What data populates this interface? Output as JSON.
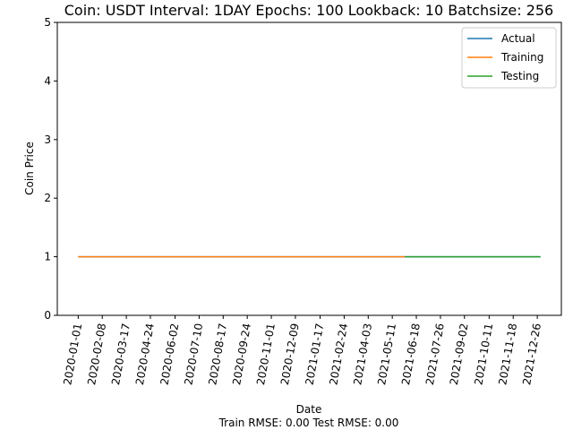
{
  "chart_data": {
    "type": "line",
    "title": "Coin: USDT Interval: 1DAY Epochs: 100 Lookback: 10 Batchsize: 256",
    "xlabel": "Date",
    "ylabel": "Coin Price",
    "footer": "Train RMSE: 0.00 Test RMSE: 0.00",
    "ylim": [
      0,
      5
    ],
    "y_ticks": [
      "0",
      "1",
      "2",
      "3",
      "4",
      "5"
    ],
    "x_range": [
      "2020-01-01",
      "2021-12-31"
    ],
    "x_ticks": [
      "2020-01-01",
      "2020-02-08",
      "2020-03-17",
      "2020-04-24",
      "2020-06-02",
      "2020-07-10",
      "2020-08-17",
      "2020-09-24",
      "2020-11-01",
      "2020-12-09",
      "2021-01-17",
      "2021-02-24",
      "2021-04-03",
      "2021-05-11",
      "2021-06-18",
      "2021-07-26",
      "2021-09-02",
      "2021-10-11",
      "2021-11-18",
      "2021-12-26"
    ],
    "grid": false,
    "legend_position": "top-right",
    "series": [
      {
        "name": "Actual",
        "color": "#1f77b4",
        "x": [
          "2020-01-01",
          "2021-12-31"
        ],
        "values": [
          1.0,
          1.0
        ]
      },
      {
        "name": "Training",
        "color": "#ff7f0e",
        "x": [
          "2020-01-01",
          "2021-05-31"
        ],
        "values": [
          1.0,
          1.0
        ]
      },
      {
        "name": "Testing",
        "color": "#2ca02c",
        "x": [
          "2021-05-31",
          "2021-12-31"
        ],
        "values": [
          1.0,
          1.0
        ]
      }
    ]
  }
}
